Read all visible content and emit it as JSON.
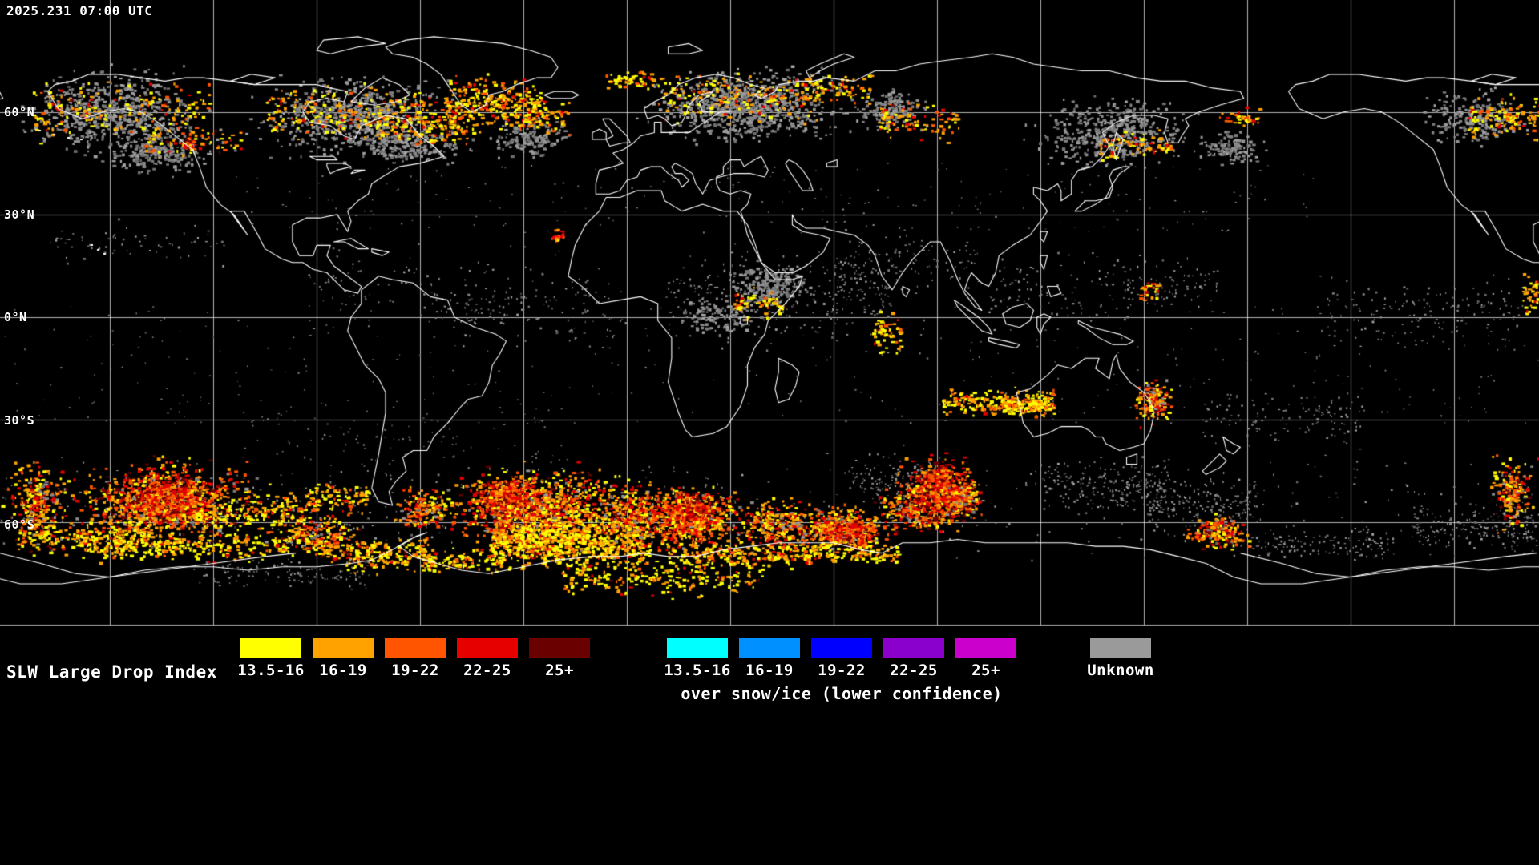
{
  "header": {
    "timestamp": "2025.231 07:00 UTC"
  },
  "map": {
    "lat_labels": [
      "60°N",
      "30°N",
      "0°N",
      "30°S",
      "60°S"
    ]
  },
  "legend": {
    "title": "SLW Large Drop Index",
    "warm": [
      {
        "label": "13.5-16",
        "color": "#ffff00"
      },
      {
        "label": "16-19",
        "color": "#ffa200"
      },
      {
        "label": "19-22",
        "color": "#ff5500"
      },
      {
        "label": "22-25",
        "color": "#e60000"
      },
      {
        "label": "25+",
        "color": "#6b0000"
      }
    ],
    "cool": [
      {
        "label": "13.5-16",
        "color": "#00ffff"
      },
      {
        "label": "16-19",
        "color": "#0090ff"
      },
      {
        "label": "19-22",
        "color": "#0000ff"
      },
      {
        "label": "22-25",
        "color": "#8a00cc"
      },
      {
        "label": "25+",
        "color": "#cc00cc"
      }
    ],
    "cool_caption": "over snow/ice (lower confidence)",
    "unknown": {
      "label": "Unknown",
      "color": "#9a9a9a"
    }
  },
  "palette": {
    "background": "#000000",
    "coastline": "#ffffff",
    "grid": "#ffffff",
    "gray_data": "#8a8a8a"
  }
}
